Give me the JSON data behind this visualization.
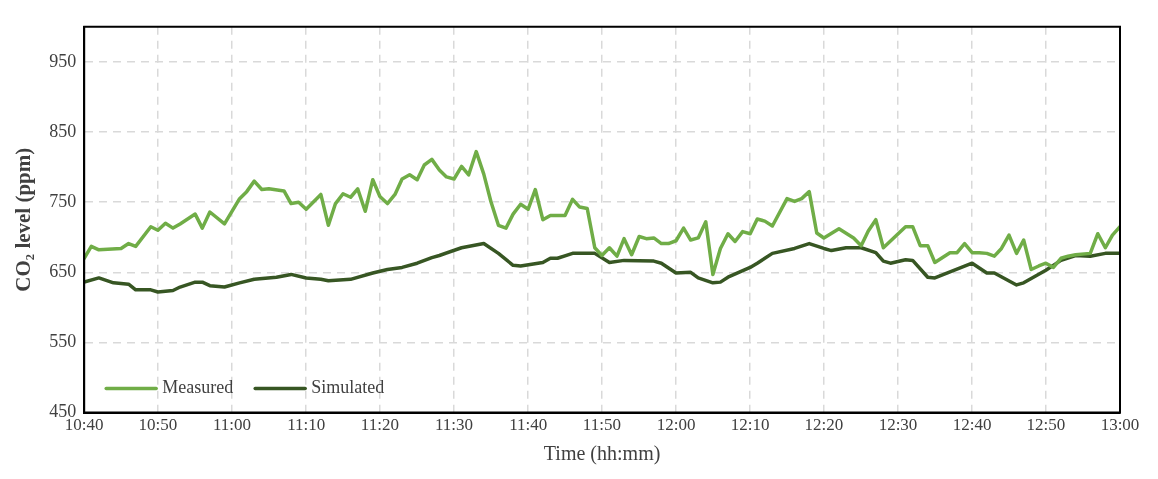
{
  "chart_data": {
    "type": "line",
    "xlabel": "Time (hh:mm)",
    "ylabel": "CO₂ level (ppm)",
    "xlim": [
      10.667,
      13
    ],
    "ylim": [
      450,
      1000
    ],
    "xticks": [
      {
        "value": 10.667,
        "label": "10:40"
      },
      {
        "value": 10.833,
        "label": "10:50"
      },
      {
        "value": 11,
        "label": "11:00"
      },
      {
        "value": 11.167,
        "label": "11:10"
      },
      {
        "value": 11.333,
        "label": "11:20"
      },
      {
        "value": 11.5,
        "label": "11:30"
      },
      {
        "value": 11.667,
        "label": "11:40"
      },
      {
        "value": 11.833,
        "label": "11:50"
      },
      {
        "value": 12,
        "label": "12:00"
      },
      {
        "value": 12.167,
        "label": "12:10"
      },
      {
        "value": 12.333,
        "label": "12:20"
      },
      {
        "value": 12.5,
        "label": "12:30"
      },
      {
        "value": 12.667,
        "label": "12:40"
      },
      {
        "value": 12.833,
        "label": "12:50"
      },
      {
        "value": 13,
        "label": "13:00"
      }
    ],
    "yticks": [
      450,
      550,
      650,
      750,
      850,
      950
    ],
    "grid": true,
    "legend": "bottom left",
    "marker": "none",
    "line_style": "solid",
    "series": [
      {
        "name": "Measured",
        "color": "#70ad47",
        "x": [
          10.667,
          10.683,
          10.7,
          10.75,
          10.767,
          10.783,
          10.817,
          10.833,
          10.85,
          10.867,
          10.883,
          10.917,
          10.933,
          10.95,
          10.983,
          11.017,
          11.033,
          11.05,
          11.067,
          11.083,
          11.117,
          11.133,
          11.15,
          11.167,
          11.2,
          11.217,
          11.233,
          11.25,
          11.267,
          11.283,
          11.3,
          11.317,
          11.333,
          11.35,
          11.367,
          11.383,
          11.4,
          11.417,
          11.433,
          11.45,
          11.467,
          11.483,
          11.5,
          11.517,
          11.533,
          11.55,
          11.567,
          11.583,
          11.6,
          11.617,
          11.633,
          11.65,
          11.667,
          11.683,
          11.7,
          11.717,
          11.75,
          11.767,
          11.783,
          11.8,
          11.817,
          11.833,
          11.85,
          11.867,
          11.883,
          11.9,
          11.917,
          11.933,
          11.95,
          11.967,
          11.983,
          12.0,
          12.017,
          12.033,
          12.05,
          12.067,
          12.083,
          12.1,
          12.117,
          12.133,
          12.15,
          12.167,
          12.183,
          12.2,
          12.217,
          12.25,
          12.267,
          12.283,
          12.3,
          12.317,
          12.333,
          12.367,
          12.4,
          12.417,
          12.433,
          12.45,
          12.467,
          12.517,
          12.533,
          12.55,
          12.567,
          12.583,
          12.617,
          12.633,
          12.65,
          12.667,
          12.683,
          12.7,
          12.717,
          12.733,
          12.75,
          12.767,
          12.783,
          12.8,
          12.817,
          12.833,
          12.85,
          12.867,
          12.883,
          12.9,
          12.933,
          12.95,
          12.967,
          12.983,
          13.0
        ],
        "values": [
          670,
          687,
          682,
          684,
          691,
          687,
          715,
          710,
          720,
          713,
          719,
          733,
          713,
          736,
          719,
          755,
          765,
          780,
          768,
          769,
          766,
          748,
          750,
          740,
          761,
          717,
          748,
          762,
          757,
          769,
          737,
          782,
          758,
          748,
          761,
          783,
          789,
          782,
          803,
          811,
          796,
          786,
          783,
          801,
          789,
          822,
          790,
          751,
          717,
          713,
          733,
          747,
          740,
          768,
          725,
          731,
          731,
          754,
          743,
          741,
          685,
          674,
          685,
          673,
          698,
          675,
          701,
          698,
          699,
          691,
          691,
          695,
          713,
          696,
          699,
          722,
          647,
          684,
          705,
          694,
          708,
          705,
          726,
          723,
          716,
          755,
          751,
          755,
          765,
          706,
          699,
          712,
          699,
          688,
          709,
          725,
          685,
          715,
          715,
          688,
          688,
          664,
          678,
          678,
          691,
          678,
          678,
          677,
          673,
          684,
          703,
          677,
          696,
          654,
          659,
          663,
          657,
          670,
          673,
          675,
          677,
          705,
          685,
          703,
          715
        ]
      },
      {
        "name": "Simulated",
        "color": "#375623",
        "x": [
          10.667,
          10.7,
          10.733,
          10.767,
          10.783,
          10.817,
          10.833,
          10.867,
          10.883,
          10.917,
          10.933,
          10.95,
          10.983,
          11.017,
          11.05,
          11.1,
          11.133,
          11.167,
          11.2,
          11.217,
          11.267,
          11.317,
          11.35,
          11.383,
          11.417,
          11.45,
          11.467,
          11.517,
          11.567,
          11.6,
          11.633,
          11.65,
          11.7,
          11.717,
          11.733,
          11.767,
          11.817,
          11.85,
          11.883,
          11.95,
          11.967,
          12.0,
          12.033,
          12.05,
          12.083,
          12.1,
          12.117,
          12.167,
          12.183,
          12.217,
          12.267,
          12.3,
          12.333,
          12.35,
          12.383,
          12.417,
          12.45,
          12.467,
          12.483,
          12.517,
          12.533,
          12.567,
          12.583,
          12.667,
          12.7,
          12.717,
          12.767,
          12.783,
          12.833,
          12.867,
          12.9,
          12.933,
          12.967,
          13.0
        ],
        "values": [
          636,
          642,
          635,
          633,
          625,
          625,
          622,
          624,
          629,
          636,
          636,
          631,
          629,
          635,
          640,
          643,
          647,
          642,
          640,
          638,
          640,
          649,
          654,
          657,
          663,
          671,
          674,
          685,
          691,
          677,
          660,
          659,
          664,
          670,
          670,
          677,
          677,
          664,
          667,
          666,
          663,
          649,
          650,
          642,
          635,
          636,
          643,
          657,
          663,
          677,
          684,
          691,
          684,
          681,
          685,
          685,
          678,
          666,
          663,
          668,
          667,
          643,
          642,
          663,
          649,
          649,
          632,
          635,
          653,
          667,
          674,
          673,
          677,
          677
        ]
      }
    ]
  }
}
